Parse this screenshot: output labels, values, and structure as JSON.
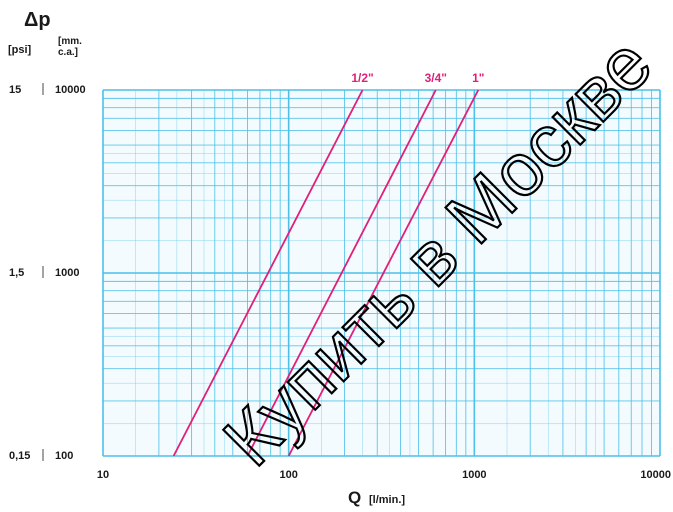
{
  "chart_data": {
    "type": "line",
    "title": "",
    "ylabel_symbol": "Δp",
    "ylabel_unit_psi": "[psi]",
    "ylabel_unit_mm_line1": "[mm.",
    "ylabel_unit_mm_line2": "c.a.]",
    "xlabel": "Q",
    "xlabel_unit": "[l/min.]",
    "x_scale": "log",
    "y_scale": "log",
    "xlim": [
      10,
      10000
    ],
    "ylim": [
      100,
      10000
    ],
    "grid": true,
    "grid_color": "#4cc0e8",
    "line_color": "#e0207a",
    "x_ticks": [
      {
        "value": 10,
        "label": "10"
      },
      {
        "value": 100,
        "label": "100"
      },
      {
        "value": 1000,
        "label": "1000"
      },
      {
        "value": 10000,
        "label": "10000"
      }
    ],
    "y_ticks": [
      {
        "value": 100,
        "psi": "0,15",
        "mm": "100"
      },
      {
        "value": 1000,
        "psi": "1,5",
        "mm": "1000"
      },
      {
        "value": 10000,
        "psi": "15",
        "mm": "10000"
      }
    ],
    "series": [
      {
        "name": "1/2\"",
        "points": [
          {
            "x": 24,
            "y": 100
          },
          {
            "x": 250,
            "y": 10000
          }
        ]
      },
      {
        "name": "3/4\"",
        "points": [
          {
            "x": 60,
            "y": 100
          },
          {
            "x": 620,
            "y": 10000
          }
        ]
      },
      {
        "name": "1\"",
        "points": [
          {
            "x": 100,
            "y": 100
          },
          {
            "x": 1050,
            "y": 10000
          }
        ]
      }
    ]
  },
  "watermark": "Купить в Москве"
}
